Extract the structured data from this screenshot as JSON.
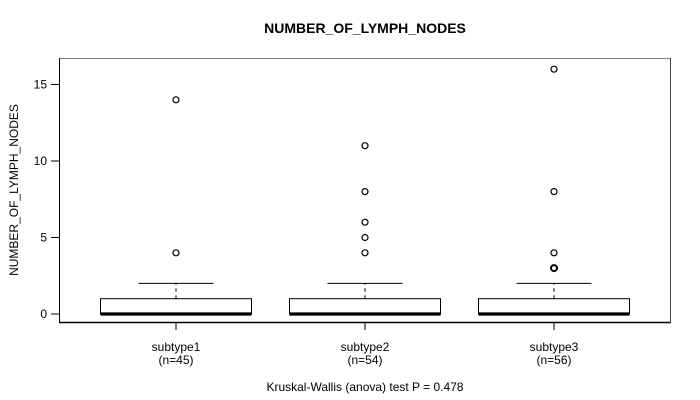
{
  "chart_data": {
    "type": "boxplot",
    "title": "NUMBER_OF_LYMPH_NODES",
    "ylabel": "NUMBER_OF_LYMPH_NODES",
    "caption": "Kruskal-Wallis (anova) test P = 0.478",
    "yticks": [
      0,
      5,
      10,
      15
    ],
    "ylim": [
      0,
      16
    ],
    "grid": false,
    "groups": [
      {
        "label": "subtype1",
        "sublabel": "(n=45)",
        "stats": {
          "whisker_low": 0,
          "q1": 0,
          "median": 0,
          "q3": 1,
          "whisker_high": 2
        },
        "outliers": [
          4,
          14
        ]
      },
      {
        "label": "subtype2",
        "sublabel": "(n=54)",
        "stats": {
          "whisker_low": 0,
          "q1": 0,
          "median": 0,
          "q3": 1,
          "whisker_high": 2
        },
        "outliers": [
          4,
          5,
          6,
          8,
          11
        ]
      },
      {
        "label": "subtype3",
        "sublabel": "(n=56)",
        "stats": {
          "whisker_low": 0,
          "q1": 0,
          "median": 0,
          "q3": 1,
          "whisker_high": 2
        },
        "outliers": [
          3,
          3,
          4,
          8,
          16
        ]
      }
    ],
    "colors": {
      "line": "#000000",
      "box_fill": "#ffffff",
      "border_top": "#808080",
      "border_right": "#404040",
      "background": "#ffffff"
    }
  }
}
